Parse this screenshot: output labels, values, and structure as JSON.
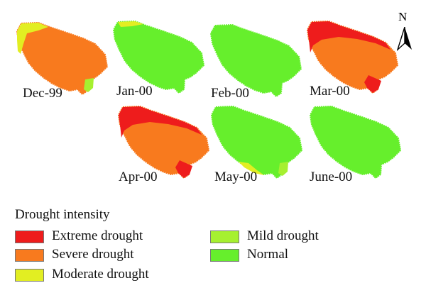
{
  "colors": {
    "extreme": "#ee1c1c",
    "severe": "#f87a1e",
    "moderate": "#e2ee22",
    "mild": "#a6f030",
    "normal": "#66ef2c"
  },
  "panels": [
    {
      "id": "dec-99",
      "label": "Dec-99",
      "base": "severe",
      "patches": [
        "moderate-nw",
        "mild-se"
      ]
    },
    {
      "id": "jan-00",
      "label": "Jan-00",
      "base": "normal",
      "patches": [
        "moderate-top"
      ]
    },
    {
      "id": "feb-00",
      "label": "Feb-00",
      "base": "normal",
      "patches": []
    },
    {
      "id": "mar-00",
      "label": "Mar-00",
      "base": "severe",
      "patches": [
        "extreme-top",
        "extreme-bottom"
      ]
    },
    {
      "id": "apr-00",
      "label": "Apr-00",
      "base": "severe",
      "patches": [
        "extreme-top",
        "extreme-bottom"
      ]
    },
    {
      "id": "may-00",
      "label": "May-00",
      "base": "normal",
      "patches": [
        "moderate-sw",
        "mild-se"
      ]
    },
    {
      "id": "jun-00",
      "label": "June-00",
      "base": "normal",
      "patches": []
    }
  ],
  "north": {
    "label": "N",
    "icon": "north-arrow-icon"
  },
  "legend": {
    "title": "Drought intensity",
    "items": [
      {
        "label": "Extreme drought",
        "color": "#ee1c1c"
      },
      {
        "label": "Severe drought",
        "color": "#f87a1e"
      },
      {
        "label": "Moderate drought",
        "color": "#e2ee22"
      },
      {
        "label": "Mild drought",
        "color": "#a6f030"
      },
      {
        "label": "Normal",
        "color": "#66ef2c"
      }
    ]
  }
}
